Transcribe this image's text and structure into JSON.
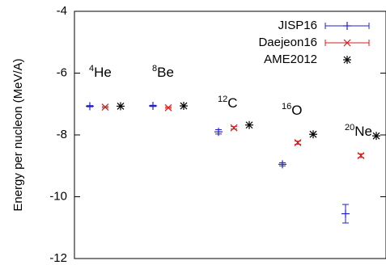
{
  "chart_data": {
    "type": "scatter",
    "ylabel": "Energy per nucleon (MeV/A)",
    "ylim": [
      -12,
      -4
    ],
    "yticks": [
      -4,
      -6,
      -8,
      -10,
      -12
    ],
    "xticks": [],
    "grid": false,
    "legend_position": "top-right",
    "nuclei": [
      {
        "mass": "4",
        "symbol": "He"
      },
      {
        "mass": "8",
        "symbol": "Be"
      },
      {
        "mass": "12",
        "symbol": "C"
      },
      {
        "mass": "16",
        "symbol": "O"
      },
      {
        "mass": "20",
        "symbol": "Ne"
      }
    ],
    "series": [
      {
        "name": "JISP16",
        "color": "#2020cc",
        "marker": "plus-errorbar",
        "values": [
          -7.07,
          -7.06,
          -7.9,
          -8.95,
          -10.55
        ],
        "errors": [
          0.02,
          0.02,
          0.07,
          0.05,
          0.3
        ]
      },
      {
        "name": "Daejeon16",
        "color": "#d02020",
        "marker": "x-errorbar",
        "values": [
          -7.1,
          -7.12,
          -7.77,
          -8.25,
          -8.67
        ],
        "errors": [
          0.02,
          0.02,
          0.04,
          0.05,
          0.06
        ]
      },
      {
        "name": "AME2012",
        "color": "#000000",
        "marker": "star",
        "values": [
          -7.07,
          -7.06,
          -7.68,
          -7.98,
          -8.03
        ],
        "errors": [
          0,
          0,
          0,
          0,
          0
        ]
      }
    ]
  }
}
